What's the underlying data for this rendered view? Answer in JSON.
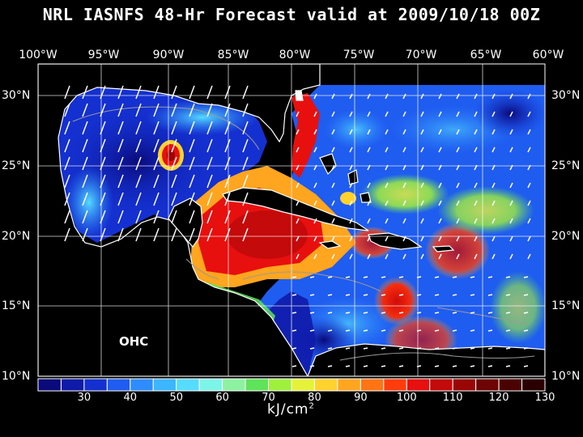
{
  "title": "NRL IASNFS  48-Hr Forecast valid at 2009/10/18 00Z",
  "field_label": "OHC",
  "longitude_labels": [
    "100°W",
    "95°W",
    "90°W",
    "85°W",
    "80°W",
    "75°W",
    "70°W",
    "65°W",
    "60°W"
  ],
  "latitude_labels": [
    "30°N",
    "25°N",
    "20°N",
    "15°N",
    "10°N"
  ],
  "colorbar": {
    "tick_labels": [
      "30",
      "40",
      "50",
      "60",
      "70",
      "80",
      "90",
      "100",
      "110",
      "120",
      "130"
    ],
    "units_text": "kJ/cm",
    "units_superscript": "2",
    "colors": [
      "#0a0a7a",
      "#0f1aa8",
      "#1430d0",
      "#1f5cf0",
      "#2e8cff",
      "#3bb6ff",
      "#55dcff",
      "#7cf5e8",
      "#8cf2a0",
      "#5fe35a",
      "#9ff03c",
      "#e6f23a",
      "#ffd22e",
      "#ffa51f",
      "#ff7414",
      "#ff3c0c",
      "#e80f0f",
      "#c40a0a",
      "#9a0606",
      "#6e0404",
      "#4a0202",
      "#2a0000"
    ]
  },
  "colors": {
    "background": "#000000",
    "land": "#000000",
    "coastline": "#ffffff",
    "grid": "#ffffff",
    "contour": "#9a9a9a"
  }
}
